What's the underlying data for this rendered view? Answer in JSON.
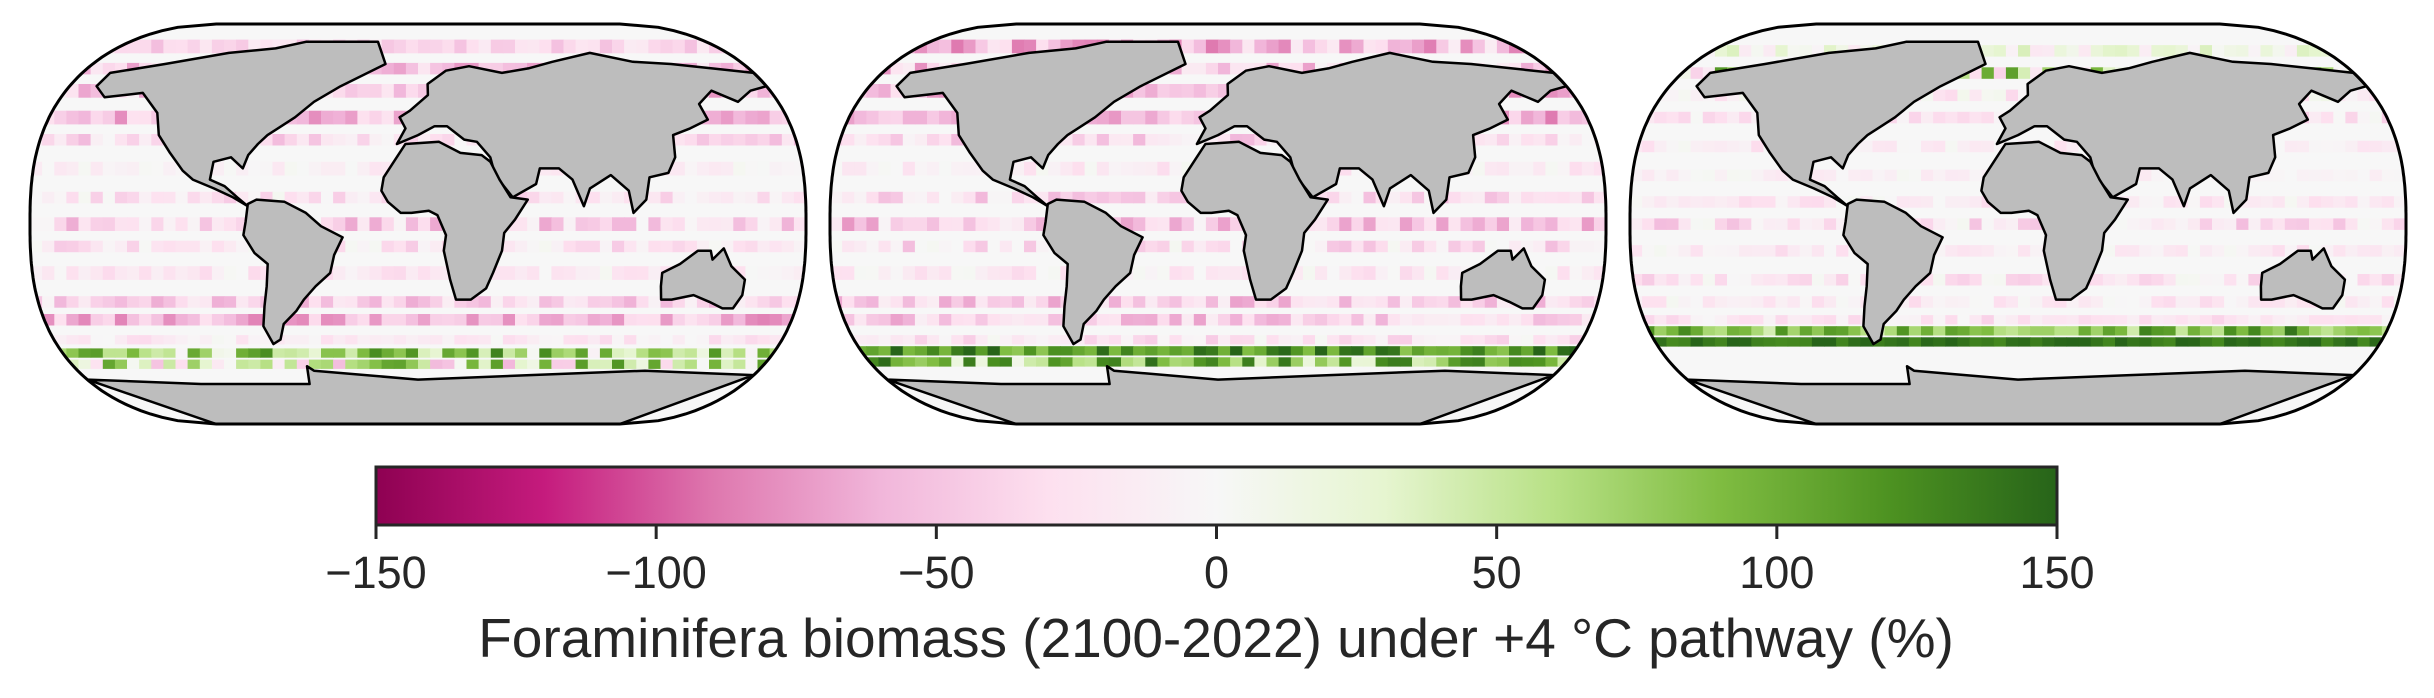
{
  "figure": {
    "panels": [
      {
        "name": "map-panel-1",
        "description_colors": {
          "dominant": "pink",
          "southern_band": "mixed green"
        },
        "bands": [
          {
            "lat": 80,
            "h": 6,
            "v": -35,
            "var": 20
          },
          {
            "lat": 70,
            "h": 5,
            "v": -45,
            "var": 30
          },
          {
            "lat": 60,
            "h": 6,
            "v": -40,
            "var": 35
          },
          {
            "lat": 48,
            "h": 6,
            "v": -55,
            "var": 30
          },
          {
            "lat": 38,
            "h": 5,
            "v": -30,
            "var": 30
          },
          {
            "lat": 25,
            "h": 6,
            "v": -10,
            "var": 15
          },
          {
            "lat": 12,
            "h": 5,
            "v": -20,
            "var": 25
          },
          {
            "lat": 0,
            "h": 6,
            "v": -35,
            "var": 35
          },
          {
            "lat": -10,
            "h": 5,
            "v": -20,
            "var": 25
          },
          {
            "lat": -22,
            "h": 6,
            "v": -15,
            "var": 20
          },
          {
            "lat": -35,
            "h": 5,
            "v": -35,
            "var": 30
          },
          {
            "lat": -43,
            "h": 5,
            "v": -55,
            "var": 30
          },
          {
            "lat": -52,
            "h": 4,
            "v": -15,
            "var": 20
          },
          {
            "lat": -58,
            "h": 4,
            "v": 60,
            "var": 70
          },
          {
            "lat": -63,
            "h": 4,
            "v": 30,
            "var": 90
          }
        ]
      },
      {
        "name": "map-panel-2",
        "description_colors": {
          "dominant": "pink",
          "southern_band": "dark green"
        },
        "bands": [
          {
            "lat": 80,
            "h": 6,
            "v": -50,
            "var": 40
          },
          {
            "lat": 70,
            "h": 5,
            "v": -40,
            "var": 40
          },
          {
            "lat": 60,
            "h": 6,
            "v": -50,
            "var": 30
          },
          {
            "lat": 48,
            "h": 6,
            "v": -60,
            "var": 30
          },
          {
            "lat": 38,
            "h": 5,
            "v": -30,
            "var": 30
          },
          {
            "lat": 25,
            "h": 6,
            "v": -15,
            "var": 20
          },
          {
            "lat": 12,
            "h": 5,
            "v": -30,
            "var": 30
          },
          {
            "lat": 0,
            "h": 6,
            "v": -40,
            "var": 35
          },
          {
            "lat": -10,
            "h": 5,
            "v": -25,
            "var": 30
          },
          {
            "lat": -22,
            "h": 6,
            "v": -15,
            "var": 20
          },
          {
            "lat": -35,
            "h": 5,
            "v": -40,
            "var": 30
          },
          {
            "lat": -43,
            "h": 5,
            "v": -40,
            "var": 30
          },
          {
            "lat": -52,
            "h": 4,
            "v": -20,
            "var": 25
          },
          {
            "lat": -57,
            "h": 4,
            "v": 120,
            "var": 40
          },
          {
            "lat": -62,
            "h": 4,
            "v": 80,
            "var": 70
          }
        ]
      },
      {
        "name": "map-panel-3",
        "description_colors": {
          "dominant": "pale pink",
          "southern_band": "green"
        },
        "bands": [
          {
            "lat": 78,
            "h": 5,
            "v": 10,
            "var": 30
          },
          {
            "lat": 68,
            "h": 5,
            "v": 40,
            "var": 80
          },
          {
            "lat": 58,
            "h": 5,
            "v": -10,
            "var": 25
          },
          {
            "lat": 48,
            "h": 5,
            "v": -20,
            "var": 25
          },
          {
            "lat": 35,
            "h": 5,
            "v": -15,
            "var": 20
          },
          {
            "lat": 22,
            "h": 5,
            "v": -8,
            "var": 12
          },
          {
            "lat": 10,
            "h": 5,
            "v": -15,
            "var": 20
          },
          {
            "lat": 0,
            "h": 5,
            "v": -25,
            "var": 30
          },
          {
            "lat": -12,
            "h": 5,
            "v": -15,
            "var": 20
          },
          {
            "lat": -25,
            "h": 5,
            "v": -20,
            "var": 25
          },
          {
            "lat": -35,
            "h": 5,
            "v": -15,
            "var": 20
          },
          {
            "lat": -43,
            "h": 4,
            "v": -20,
            "var": 20
          },
          {
            "lat": -48,
            "h": 4,
            "v": 90,
            "var": 50
          },
          {
            "lat": -53,
            "h": 4,
            "v": 140,
            "var": 15
          }
        ]
      }
    ],
    "land_color": "#bdbdbd",
    "ocean_color": "#f7f7f7",
    "colorbar": {
      "min": -150,
      "max": 150,
      "ticks": [
        -150,
        -100,
        -50,
        0,
        50,
        100,
        150
      ],
      "tick_labels": [
        "−150",
        "−100",
        "−50",
        "0",
        "50",
        "100",
        "150"
      ],
      "colormap": "PiYG",
      "colormap_stops": [
        "#8e0152",
        "#c51b7d",
        "#de77ae",
        "#f1b6da",
        "#fde0ef",
        "#f7f7f7",
        "#e6f5d0",
        "#b8e186",
        "#7fbc41",
        "#4d9221",
        "#276419"
      ],
      "label": "Foraminifera biomass (2100-2022) under +4 °C pathway (%)"
    }
  }
}
